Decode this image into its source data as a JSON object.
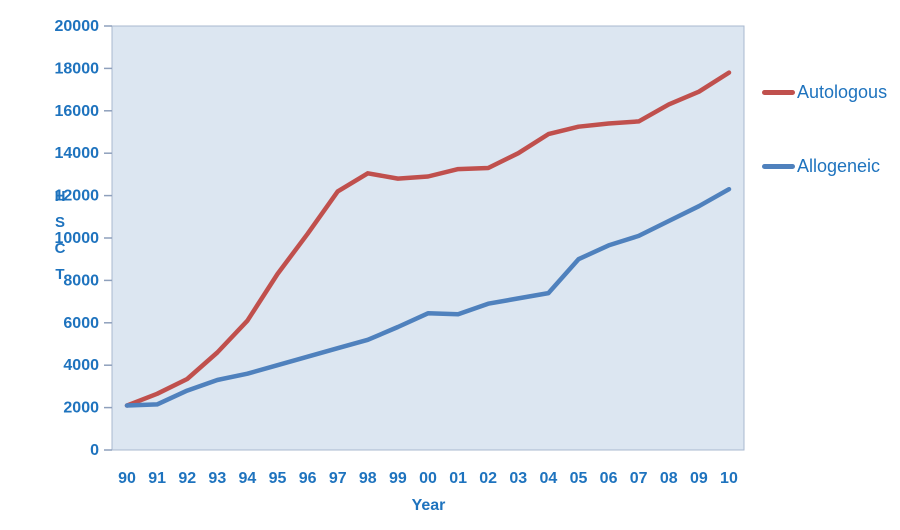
{
  "chart_data": {
    "type": "line",
    "title": "",
    "xlabel": "Year",
    "ylabel": "HSCT",
    "ylabel_stacked": [
      "H",
      "S",
      "C",
      "T"
    ],
    "x_categories": [
      "90",
      "91",
      "92",
      "93",
      "94",
      "95",
      "96",
      "97",
      "98",
      "99",
      "00",
      "01",
      "02",
      "03",
      "04",
      "05",
      "06",
      "07",
      "08",
      "09",
      "10"
    ],
    "ylim": [
      0,
      20000
    ],
    "ytick_step": 2000,
    "grid": false,
    "legend_position": "right",
    "plot_background": "#DCE6F1",
    "plot_border": "#A9B8CF",
    "tick_color": "#8EA0BC",
    "text_color": "#1E73BE",
    "series": [
      {
        "name": "Autologous",
        "color": "#C0504D",
        "values": [
          2100,
          2650,
          3350,
          4600,
          6100,
          8300,
          10200,
          12200,
          13050,
          12800,
          12900,
          13250,
          13300,
          14000,
          14900,
          15250,
          15400,
          15500,
          16300,
          16900,
          17800
        ]
      },
      {
        "name": "Allogeneic",
        "color": "#4F81BD",
        "values": [
          2100,
          2150,
          2800,
          3300,
          3600,
          4000,
          4400,
          4800,
          5200,
          5800,
          6450,
          6400,
          6900,
          7150,
          7400,
          9000,
          9650,
          10100,
          10800,
          11500,
          12300
        ]
      }
    ]
  }
}
